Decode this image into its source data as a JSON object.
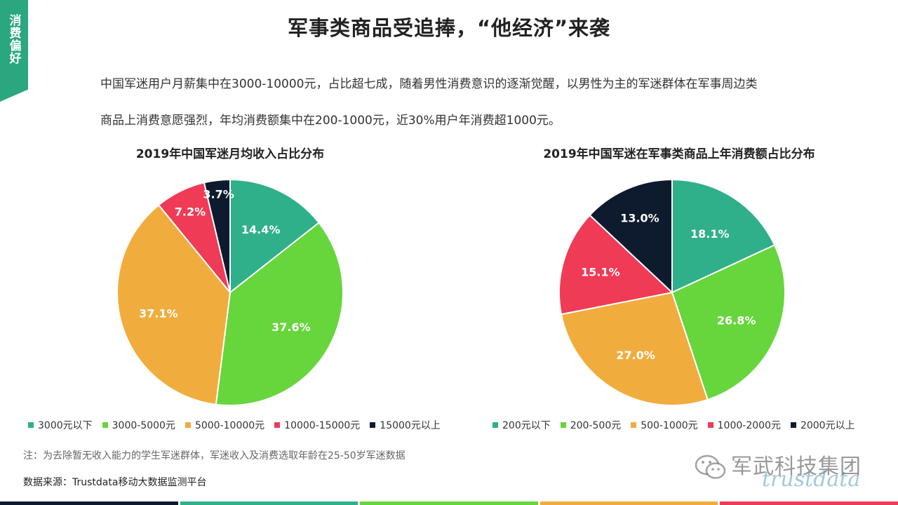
{
  "sidebar": {
    "label": "消费偏好"
  },
  "header": {
    "title": "军事类商品受追捧，“他经济”来袭"
  },
  "intro": {
    "line1": "中国军迷用户月薪集中在3000-10000元，占比超七成，随着男性消费意识的逐渐觉醒，以男性为主的军迷群体在军事周边类",
    "line2": "商品上消费意愿强烈，年均消费额集中在200-1000元，近30%用户年消费超1000元。"
  },
  "colors": {
    "teal": "#2fb08a",
    "green": "#66d63c",
    "orange": "#f0ad3e",
    "red": "#ef3b55",
    "dark": "#0e1a2e",
    "accent": "#2aa77f"
  },
  "chart_data": [
    {
      "type": "pie",
      "title": "2019年中国军迷月均收入占比分布",
      "categories": [
        "3000元以下",
        "3000-5000元",
        "5000-10000元",
        "10000-15000元",
        "15000元以上"
      ],
      "values": [
        14.4,
        37.6,
        37.1,
        7.2,
        3.7
      ],
      "labels": [
        "14.4%",
        "37.6%",
        "37.1%",
        "7.2%",
        "3.7%"
      ],
      "colors": [
        "#2fb08a",
        "#66d63c",
        "#f0ad3e",
        "#ef3b55",
        "#0e1a2e"
      ],
      "legend_position": "bottom"
    },
    {
      "type": "pie",
      "title": "2019年中国军迷在军事类商品上年消费额占比分布",
      "categories": [
        "200元以下",
        "200-500元",
        "500-1000元",
        "1000-2000元",
        "2000元以上"
      ],
      "values": [
        18.1,
        26.8,
        27.0,
        15.1,
        13.0
      ],
      "labels": [
        "18.1%",
        "26.8%",
        "27.0%",
        "15.1%",
        "13.0%"
      ],
      "colors": [
        "#2fb08a",
        "#66d63c",
        "#f0ad3e",
        "#ef3b55",
        "#0e1a2e"
      ],
      "legend_position": "bottom"
    }
  ],
  "footer": {
    "note": "注：为去除暂无收入能力的学生军迷群体，军迷收入及消费选取年龄在25-50岁军迷数据",
    "source": "数据来源：Trustdata移动大数据监测平台"
  },
  "watermark": {
    "text": "军武科技集团",
    "logo": "trustdata",
    "icon": "wechat-icon"
  },
  "bottom_bar_colors": [
    "#0e1a2e",
    "#2fb08a",
    "#66d63c",
    "#f0ad3e",
    "#ef3b55"
  ]
}
